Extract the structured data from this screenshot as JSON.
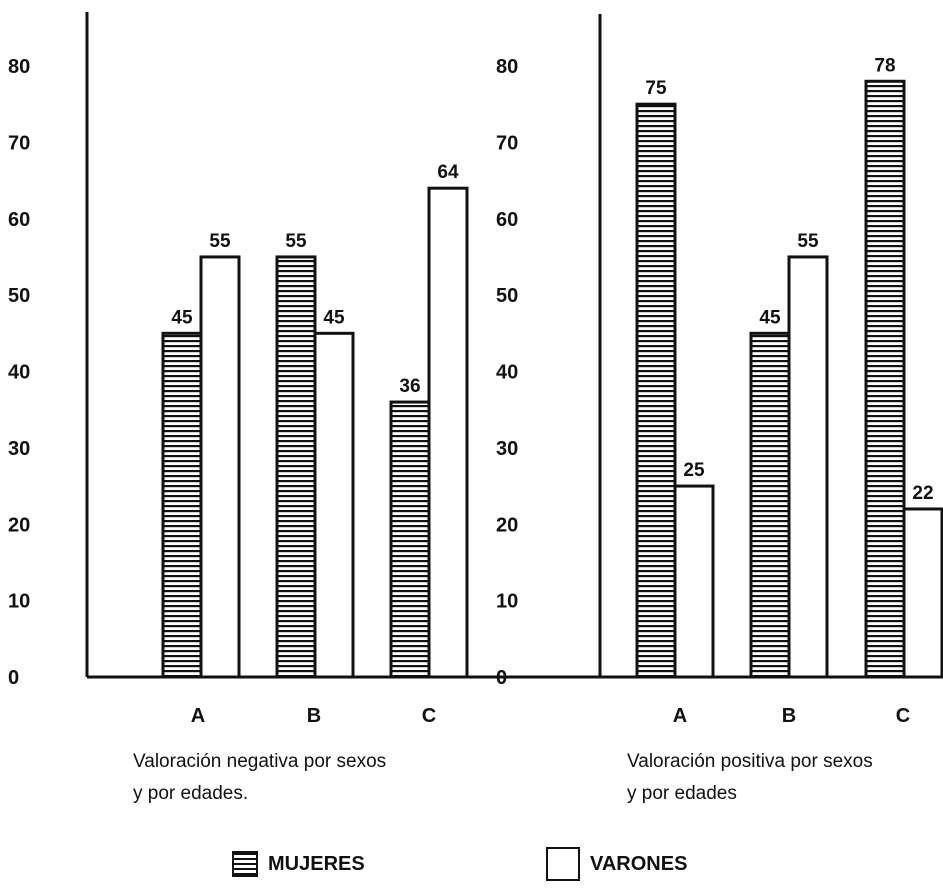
{
  "chart_data": [
    {
      "type": "bar",
      "categories": [
        "A",
        "B",
        "C"
      ],
      "series": [
        {
          "name": "MUJERES",
          "values": [
            45,
            55,
            36
          ]
        },
        {
          "name": "VARONES",
          "values": [
            55,
            45,
            64
          ]
        }
      ],
      "yticks": [
        "0",
        "10",
        "20",
        "30",
        "40",
        "50",
        "60",
        "70",
        "80"
      ],
      "ylim": [
        0,
        80
      ],
      "caption": [
        "Valoración negativa por sexos",
        "y por edades."
      ]
    },
    {
      "type": "bar",
      "categories": [
        "A",
        "B",
        "C"
      ],
      "series": [
        {
          "name": "MUJERES",
          "values": [
            75,
            45,
            78
          ]
        },
        {
          "name": "VARONES",
          "values": [
            25,
            55,
            22
          ]
        }
      ],
      "yticks": [
        "0",
        "10",
        "20",
        "30",
        "40",
        "50",
        "60",
        "70",
        "80"
      ],
      "ylim": [
        0,
        80
      ],
      "caption": [
        "Valoración positiva por sexos",
        "y por edades"
      ]
    }
  ],
  "legend": {
    "mujeres_label": "MUJERES",
    "varones_label": "VARONES"
  },
  "styles": {
    "ink": "#111111",
    "background": "#ffffff",
    "hatch": "horizontal-lines",
    "mujeres_fill": "hatched",
    "varones_fill": "white"
  }
}
